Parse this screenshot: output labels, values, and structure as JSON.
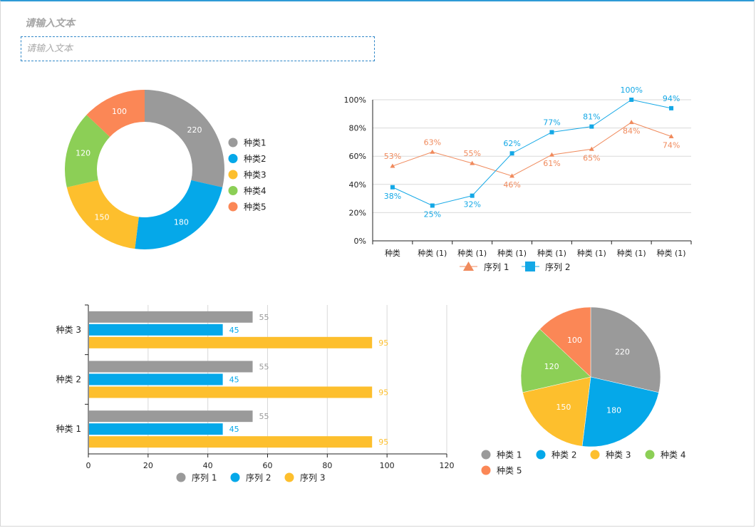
{
  "header": {
    "title": "请输入文本",
    "input_placeholder": "请输入文本"
  },
  "colors": {
    "gray": "#9a9a9a",
    "blue": "#05a8e9",
    "yellow": "#fdbf2d",
    "green": "#8ccf56",
    "orange": "#fb8756",
    "line1": "#f08a5c",
    "line2": "#14a8e6"
  },
  "chart_data": [
    {
      "type": "pie",
      "subtype": "donut",
      "categories": [
        "种类 1",
        "种类 2",
        "种类 3",
        "种类 4",
        "种类 5"
      ],
      "legend_labels": [
        "种类1",
        "种类2",
        "种类3",
        "种类4",
        "种类5"
      ],
      "values": [
        220,
        180,
        150,
        120,
        100
      ],
      "legend": "right"
    },
    {
      "type": "line",
      "categories": [
        "种类",
        "种类 (1)",
        "种类 (1)",
        "种类 (1)",
        "种类 (1)",
        "种类 (1)",
        "种类 (1)",
        "种类 (1)"
      ],
      "series": [
        {
          "name": "序列 1",
          "marker": "triangle",
          "values": [
            53,
            63,
            55,
            46,
            61,
            65,
            84,
            74
          ]
        },
        {
          "name": "序列 2",
          "marker": "square",
          "values": [
            38,
            25,
            32,
            62,
            77,
            81,
            100,
            94
          ]
        }
      ],
      "ylim": [
        0,
        100
      ],
      "yticks": [
        "0%",
        "20%",
        "40%",
        "60%",
        "80%",
        "100%"
      ],
      "grid": true,
      "legend": "bottom"
    },
    {
      "type": "bar",
      "orientation": "horizontal",
      "categories": [
        "种类 1",
        "种类 2",
        "种类 3"
      ],
      "series": [
        {
          "name": "序列 1",
          "values": [
            55,
            55,
            55
          ]
        },
        {
          "name": "序列 2",
          "values": [
            45,
            45,
            45
          ]
        },
        {
          "name": "序列 3",
          "values": [
            95,
            95,
            95
          ]
        }
      ],
      "xlim": [
        0,
        120
      ],
      "xticks": [
        "0",
        "20",
        "40",
        "60",
        "80",
        "100",
        "120"
      ],
      "grid": true,
      "legend": "bottom"
    },
    {
      "type": "pie",
      "categories": [
        "种类 1",
        "种类 2",
        "种类 3",
        "种类 4",
        "种类 5"
      ],
      "values": [
        220,
        180,
        150,
        120,
        100
      ],
      "legend": "bottom"
    }
  ]
}
